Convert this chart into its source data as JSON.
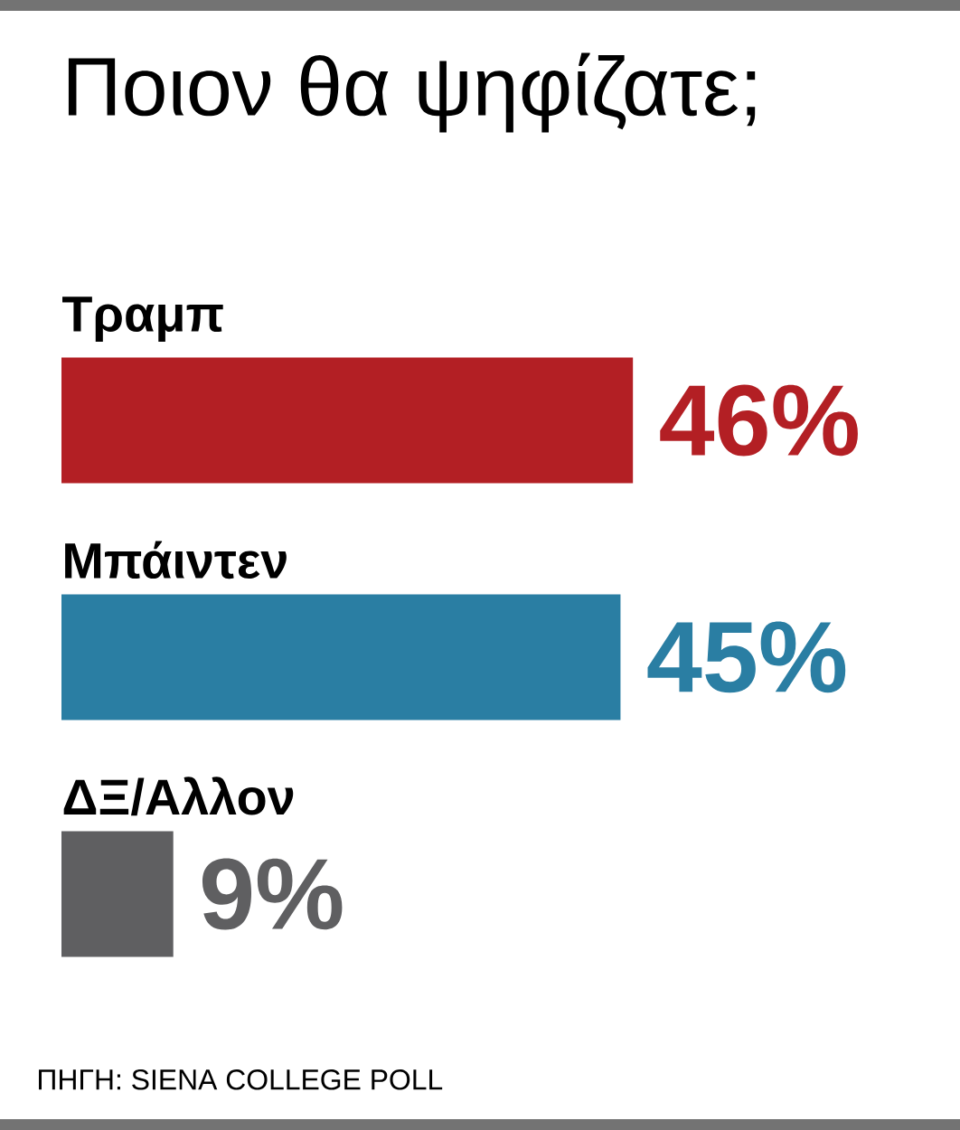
{
  "chart_data": {
    "type": "bar",
    "orientation": "horizontal",
    "title": "Ποιον θα ψηφίζατε;",
    "categories": [
      "Τραμπ",
      "Μπάιντεν",
      "ΔΞ/Αλλον"
    ],
    "values": [
      46,
      45,
      9
    ],
    "colors": [
      "#b31f24",
      "#2a7ea3",
      "#5f5f61"
    ],
    "value_labels": [
      "46%",
      "45%",
      "9%"
    ],
    "tick_labels": false,
    "annotations": [
      "ΠΗΓΗ: SIENA COLLEGE POLL"
    ]
  }
}
